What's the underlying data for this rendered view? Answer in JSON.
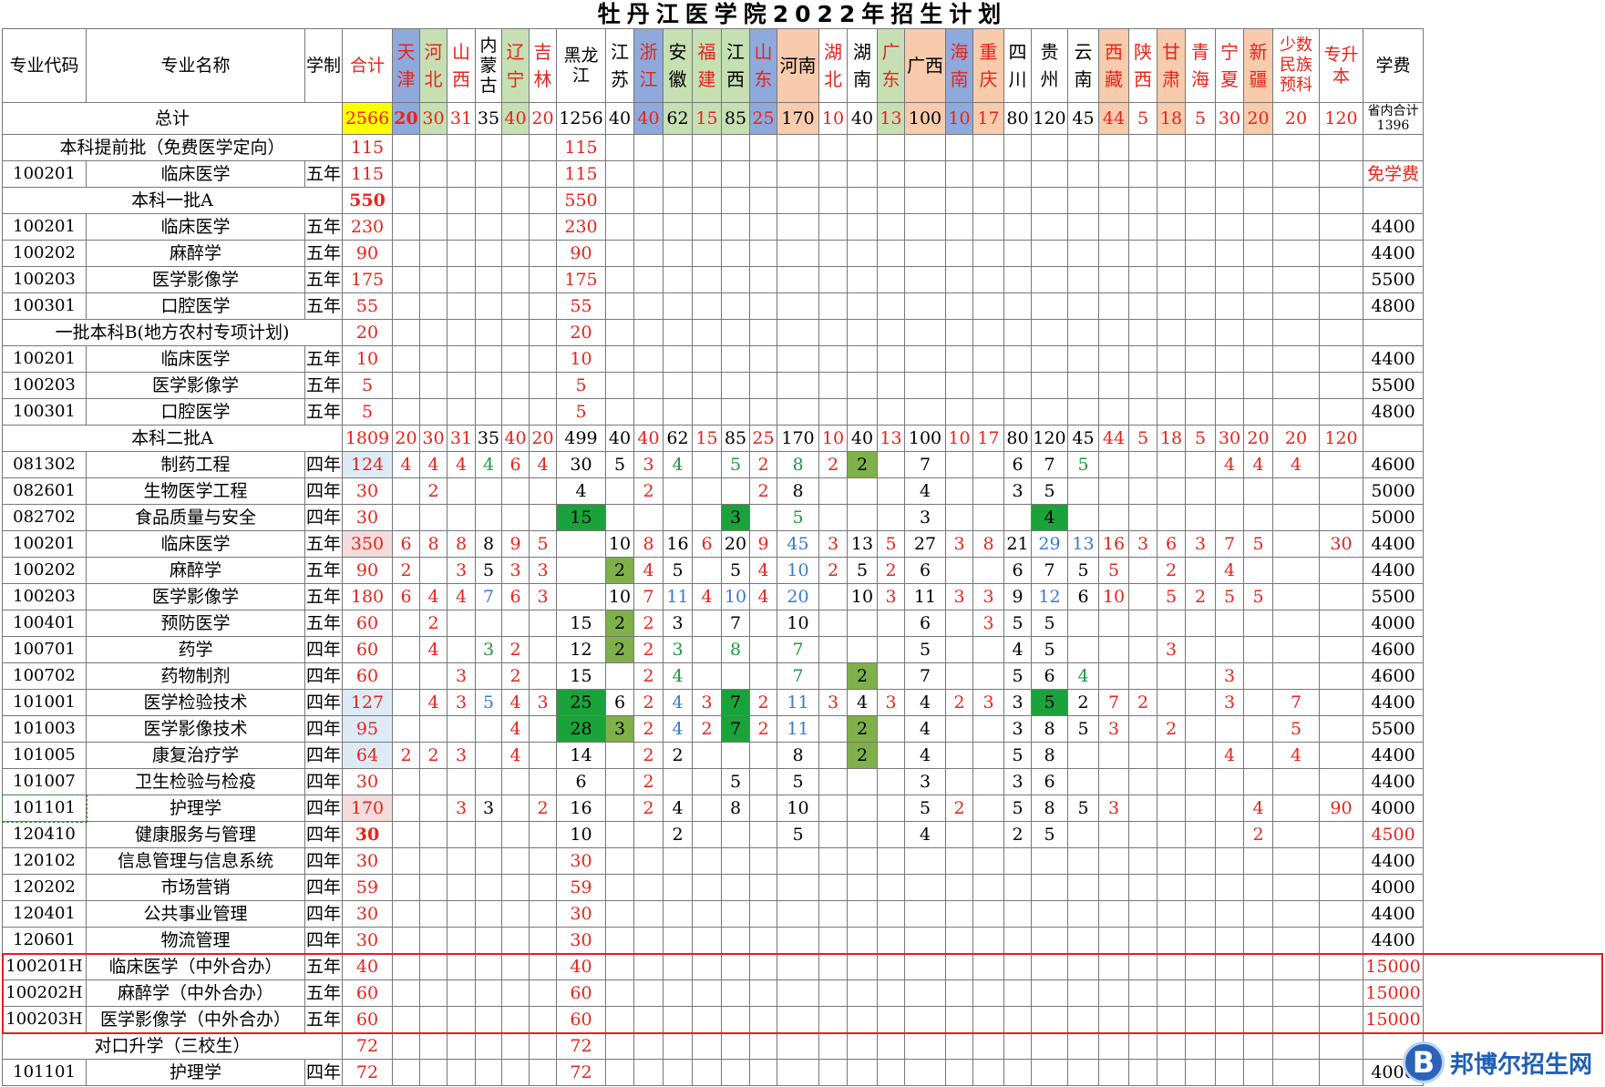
{
  "title": "牡丹江医学院2022年招生计划",
  "columns": [
    "专业代码",
    "专业名称",
    "学制",
    "合计",
    "天津",
    "河北",
    "山西",
    "内蒙古",
    "辽宁",
    "吉林",
    "黑龙江",
    "江苏",
    "浙江",
    "安徽",
    "福建",
    "江西",
    "山东",
    "河南",
    "湖北",
    "湖南",
    "广东",
    "广西",
    "海南",
    "重庆",
    "四川",
    "贵州",
    "云南",
    "西藏",
    "陕西",
    "甘肃",
    "青海",
    "宁夏",
    "新疆",
    "少数民族预科",
    "专升本",
    "学费"
  ],
  "column_header_colors": [
    "#ffffff",
    "#ffffff",
    "#ffffff",
    "#ffffff",
    "#8ea9db",
    "#c6e0b4",
    "#ffffff",
    "#ffffff",
    "#c6e0b4",
    "#ffffff",
    "#ffffff",
    "#ffffff",
    "#8ea9db",
    "#c6e0b4",
    "#c6e0b4",
    "#c6e0b4",
    "#8ea9db",
    "#f8cbad",
    "#ffffff",
    "#ffffff",
    "#c6e0b4",
    "#f8cbad",
    "#8ea9db",
    "#f8cbad",
    "#ffffff",
    "#ffffff",
    "#ffffff",
    "#f8cbad",
    "#ffffff",
    "#f8cbad",
    "#ffffff",
    "#ffffff",
    "#f8cbad",
    "#ffffff",
    "#ffffff",
    "#ffffff"
  ],
  "column_header_red": [
    false,
    false,
    false,
    true,
    true,
    true,
    true,
    false,
    true,
    true,
    false,
    false,
    true,
    false,
    true,
    false,
    true,
    false,
    true,
    false,
    true,
    false,
    true,
    true,
    false,
    false,
    false,
    true,
    true,
    true,
    true,
    true,
    true,
    true,
    true,
    false
  ],
  "total_row": {
    "label": "总计",
    "values": [
      "2566",
      "20",
      "30",
      "31",
      "35",
      "40",
      "20",
      "1256",
      "40",
      "40",
      "62",
      "15",
      "85",
      "25",
      "170",
      "10",
      "40",
      "13",
      "100",
      "10",
      "17",
      "80",
      "120",
      "45",
      "44",
      "5",
      "18",
      "5",
      "30",
      "20",
      "20",
      "120"
    ],
    "fee_note": "省内合计1396"
  },
  "rows": [
    {
      "kind": "section",
      "label": "本科提前批（免费医学定向）",
      "total": "115",
      "hlj": "115"
    },
    {
      "kind": "major",
      "code": "100201",
      "name": "临床医学",
      "years": "五年",
      "total": "115",
      "hlj": "115",
      "fee": "免学费",
      "fee_red": true
    },
    {
      "kind": "section",
      "label": "本科一批A",
      "total": "550",
      "hlj": "550",
      "total_bold": true
    },
    {
      "kind": "major",
      "code": "100201",
      "name": "临床医学",
      "years": "五年",
      "total": "230",
      "hlj": "230",
      "fee": "4400"
    },
    {
      "kind": "major",
      "code": "100202",
      "name": "麻醉学",
      "years": "五年",
      "total": "90",
      "hlj": "90",
      "fee": "4400"
    },
    {
      "kind": "major",
      "code": "100203",
      "name": "医学影像学",
      "years": "五年",
      "total": "175",
      "hlj": "175",
      "fee": "5500"
    },
    {
      "kind": "major",
      "code": "100301",
      "name": "口腔医学",
      "years": "五年",
      "total": "55",
      "hlj": "55",
      "fee": "4800"
    },
    {
      "kind": "section",
      "label": "一批本科B(地方农村专项计划)",
      "total": "20",
      "hlj": "20"
    },
    {
      "kind": "major",
      "code": "100201",
      "name": "临床医学",
      "years": "五年",
      "total": "10",
      "hlj": "10",
      "fee": "4400"
    },
    {
      "kind": "major",
      "code": "100203",
      "name": "医学影像学",
      "years": "五年",
      "total": "5",
      "hlj": "5",
      "fee": "5500"
    },
    {
      "kind": "major",
      "code": "100301",
      "name": "口腔医学",
      "years": "五年",
      "total": "5",
      "hlj": "5",
      "fee": "4800"
    },
    {
      "kind": "section2a",
      "label": "本科二批A",
      "values": [
        "1809",
        "20",
        "30",
        "31",
        "35",
        "40",
        "20",
        "499",
        "40",
        "40",
        "62",
        "15",
        "85",
        "25",
        "170",
        "10",
        "40",
        "13",
        "100",
        "10",
        "17",
        "80",
        "120",
        "45",
        "44",
        "5",
        "18",
        "5",
        "30",
        "20",
        "20",
        "120"
      ]
    },
    {
      "kind": "major2",
      "code": "081302",
      "name": "制药工程",
      "years": "四年",
      "total": "124",
      "tbg": "#ddebf7",
      "cells": {
        "天津": "4",
        "河北": "4",
        "山西": "4",
        "内蒙古": "4",
        "辽宁": "6",
        "吉林": "4",
        "黑龙江": "30",
        "江苏": "5",
        "浙江": "3",
        "安徽": "4",
        "江西": "5",
        "山东": "2",
        "河南": "8",
        "湖北": "2",
        "湖南": "2",
        "广西": "7",
        "四川": "6",
        "贵州": "7",
        "云南": "5",
        "宁夏": "4",
        "新疆": "4",
        "少数民族预科": "4"
      },
      "fee": "4600"
    },
    {
      "kind": "major2",
      "code": "082601",
      "name": "生物医学工程",
      "years": "四年",
      "total": "30",
      "cells": {
        "河北": "2",
        "黑龙江": "4",
        "浙江": "2",
        "山东": "2",
        "河南": "8",
        "广西": "4",
        "四川": "3",
        "贵州": "5"
      },
      "fee": "5000"
    },
    {
      "kind": "major2",
      "code": "082702",
      "name": "食品质量与安全",
      "years": "四年",
      "total": "30",
      "cells": {
        "黑龙江": "15",
        "江西": "3",
        "河南": "5",
        "广西": "3",
        "贵州": "4"
      },
      "fee": "5000"
    },
    {
      "kind": "major2",
      "code": "100201",
      "name": "临床医学",
      "years": "五年",
      "total": "350",
      "tbg": "#f4dcdc",
      "cells": {
        "天津": "6",
        "河北": "8",
        "山西": "8",
        "内蒙古": "8",
        "辽宁": "9",
        "吉林": "5",
        "江苏": "10",
        "浙江": "8",
        "安徽": "16",
        "福建": "6",
        "江西": "20",
        "山东": "9",
        "河南": "45",
        "湖北": "3",
        "湖南": "13",
        "广东": "5",
        "广西": "27",
        "海南": "3",
        "重庆": "8",
        "四川": "21",
        "贵州": "29",
        "云南": "13",
        "西藏": "16",
        "陕西": "3",
        "甘肃": "6",
        "青海": "3",
        "宁夏": "7",
        "新疆": "5",
        "专升本": "30"
      },
      "fee": "4400"
    },
    {
      "kind": "major2",
      "code": "100202",
      "name": "麻醉学",
      "years": "五年",
      "total": "90",
      "cells": {
        "天津": "2",
        "山西": "3",
        "内蒙古": "5",
        "辽宁": "3",
        "吉林": "3",
        "江苏": "2",
        "浙江": "4",
        "安徽": "5",
        "江西": "5",
        "山东": "4",
        "河南": "10",
        "湖北": "2",
        "湖南": "5",
        "广东": "2",
        "广西": "6",
        "四川": "6",
        "贵州": "7",
        "云南": "5",
        "西藏": "5",
        "甘肃": "2",
        "宁夏": "4"
      },
      "fee": "4400"
    },
    {
      "kind": "major2",
      "code": "100203",
      "name": "医学影像学",
      "years": "五年",
      "total": "180",
      "cells": {
        "天津": "6",
        "河北": "4",
        "山西": "4",
        "内蒙古": "7",
        "辽宁": "6",
        "吉林": "3",
        "江苏": "10",
        "浙江": "7",
        "安徽": "11",
        "福建": "4",
        "江西": "10",
        "山东": "4",
        "河南": "20",
        "湖南": "10",
        "广东": "3",
        "广西": "11",
        "海南": "3",
        "重庆": "3",
        "四川": "9",
        "贵州": "12",
        "云南": "6",
        "西藏": "10",
        "甘肃": "5",
        "青海": "2",
        "宁夏": "5",
        "新疆": "5"
      },
      "fee": "5500"
    },
    {
      "kind": "major2",
      "code": "100401",
      "name": "预防医学",
      "years": "五年",
      "total": "60",
      "cells": {
        "河北": "2",
        "黑龙江": "15",
        "江苏": "2",
        "浙江": "2",
        "安徽": "3",
        "江西": "7",
        "河南": "10",
        "广西": "6",
        "重庆": "3",
        "四川": "5",
        "贵州": "5"
      },
      "fee": "4000"
    },
    {
      "kind": "major2",
      "code": "100701",
      "name": "药学",
      "years": "四年",
      "total": "60",
      "cells": {
        "河北": "4",
        "内蒙古": "3",
        "辽宁": "2",
        "黑龙江": "12",
        "江苏": "2",
        "浙江": "2",
        "安徽": "3",
        "江西": "8",
        "河南": "7",
        "广西": "5",
        "四川": "4",
        "贵州": "5",
        "甘肃": "3"
      },
      "fee": "4600"
    },
    {
      "kind": "major2",
      "code": "100702",
      "name": "药物制剂",
      "years": "四年",
      "total": "60",
      "cells": {
        "山西": "3",
        "辽宁": "2",
        "黑龙江": "15",
        "浙江": "2",
        "安徽": "4",
        "河南": "7",
        "湖南": "2",
        "广西": "7",
        "四川": "5",
        "贵州": "6",
        "云南": "4",
        "宁夏": "3"
      },
      "fee": "4600"
    },
    {
      "kind": "major2",
      "code": "101001",
      "name": "医学检验技术",
      "years": "四年",
      "total": "127",
      "tbg": "#ddebf7",
      "cells": {
        "河北": "4",
        "山西": "3",
        "内蒙古": "5",
        "辽宁": "4",
        "吉林": "3",
        "黑龙江": "25",
        "江苏": "6",
        "浙江": "2",
        "安徽": "4",
        "福建": "3",
        "江西": "7",
        "山东": "2",
        "河南": "11",
        "湖北": "3",
        "湖南": "4",
        "广东": "3",
        "广西": "4",
        "海南": "2",
        "重庆": "3",
        "四川": "3",
        "贵州": "5",
        "云南": "2",
        "西藏": "7",
        "陕西": "2",
        "宁夏": "3",
        "少数民族预科": "7"
      },
      "fee": "4400"
    },
    {
      "kind": "major2",
      "code": "101003",
      "name": "医学影像技术",
      "years": "四年",
      "total": "95",
      "tbg": "#ddebf7",
      "cells": {
        "辽宁": "4",
        "黑龙江": "28",
        "江苏": "3",
        "浙江": "2",
        "安徽": "4",
        "福建": "2",
        "江西": "7",
        "山东": "2",
        "河南": "11",
        "湖南": "2",
        "广西": "4",
        "四川": "3",
        "贵州": "8",
        "云南": "5",
        "西藏": "3",
        "甘肃": "2",
        "少数民族预科": "5"
      },
      "fee": "5500"
    },
    {
      "kind": "major2",
      "code": "101005",
      "name": "康复治疗学",
      "years": "四年",
      "total": "64",
      "tbg": "#ddebf7",
      "cells": {
        "天津": "2",
        "河北": "2",
        "山西": "3",
        "辽宁": "4",
        "黑龙江": "14",
        "浙江": "2",
        "安徽": "2",
        "河南": "8",
        "湖南": "2",
        "广西": "4",
        "四川": "5",
        "贵州": "8",
        "宁夏": "4",
        "少数民族预科": "4"
      },
      "fee": "4400"
    },
    {
      "kind": "major2",
      "code": "101007",
      "name": "卫生检验与检疫",
      "years": "四年",
      "total": "30",
      "cells": {
        "黑龙江": "6",
        "浙江": "2",
        "江西": "5",
        "河南": "5",
        "广西": "3",
        "四川": "3",
        "贵州": "6"
      },
      "fee": "4400"
    },
    {
      "kind": "major2",
      "code": "101101",
      "name": "护理学",
      "years": "四年",
      "total": "170",
      "tbg": "#f4dcdc",
      "code_dashed": true,
      "cells": {
        "山西": "3",
        "内蒙古": "3",
        "吉林": "2",
        "黑龙江": "16",
        "浙江": "2",
        "安徽": "4",
        "江西": "8",
        "河南": "10",
        "广西": "5",
        "海南": "2",
        "四川": "5",
        "贵州": "8",
        "云南": "5",
        "西藏": "3",
        "新疆": "4",
        "专升本": "90"
      },
      "fee": "4000"
    },
    {
      "kind": "major2",
      "code": "120410",
      "name": "健康服务与管理",
      "years": "四年",
      "total": "30",
      "total_bold": true,
      "cells": {
        "黑龙江": "10",
        "安徽": "2",
        "河南": "5",
        "广西": "4",
        "四川": "2",
        "贵州": "5",
        "新疆": "2"
      },
      "fee": "4500",
      "fee_red": true
    },
    {
      "kind": "major",
      "code": "120102",
      "name": "信息管理与信息系统",
      "years": "四年",
      "total": "30",
      "hlj": "30",
      "fee": "4400"
    },
    {
      "kind": "major",
      "code": "120202",
      "name": "市场营销",
      "years": "四年",
      "total": "59",
      "hlj": "59",
      "fee": "4000"
    },
    {
      "kind": "major",
      "code": "120401",
      "name": "公共事业管理",
      "years": "四年",
      "total": "30",
      "hlj": "30",
      "fee": "4400"
    },
    {
      "kind": "major",
      "code": "120601",
      "name": "物流管理",
      "years": "四年",
      "total": "30",
      "hlj": "30",
      "fee": "4400"
    },
    {
      "kind": "major",
      "code": "100201H",
      "name": "临床医学（中外合办）",
      "years": "五年",
      "total": "40",
      "hlj": "40",
      "fee": "15000",
      "fee_red": true
    },
    {
      "kind": "major",
      "code": "100202H",
      "name": "麻醉学（中外合办）",
      "years": "五年",
      "total": "60",
      "hlj": "60",
      "fee": "15000",
      "fee_red": true
    },
    {
      "kind": "major",
      "code": "100203H",
      "name": "医学影像学（中外合办）",
      "years": "五年",
      "total": "60",
      "hlj": "60",
      "fee": "15000",
      "fee_red": true
    },
    {
      "kind": "section",
      "label": "对口升学（三校生）",
      "total": "72",
      "hlj": "72"
    },
    {
      "kind": "major",
      "code": "101101",
      "name": "护理学",
      "years": "四年",
      "total": "72",
      "hlj": "72",
      "fee": "4000"
    }
  ],
  "cell_styles": {
    "green_bg": {
      "081302": [
        "湖南"
      ],
      "082702": [
        "黑龙江",
        "江西",
        "贵州"
      ],
      "100202": [
        "江苏"
      ],
      "100401": [
        "江苏"
      ],
      "100701": [
        "江苏"
      ],
      "100702": [
        "湖南"
      ],
      "101001": [
        "黑龙江",
        "江西",
        "贵州"
      ],
      "101003": [
        "黑龙江",
        "江苏",
        "江西",
        "湖南"
      ],
      "101005": [
        "湖南"
      ]
    },
    "dark_green_bg": {
      "082702": [
        "黑龙江",
        "江西",
        "贵州"
      ],
      "101001": [
        "黑龙江",
        "江西",
        "贵州"
      ],
      "101003": [
        "黑龙江",
        "江西"
      ]
    }
  },
  "watermark": {
    "logo_letter": "B",
    "text": "邦博尔招生网"
  }
}
